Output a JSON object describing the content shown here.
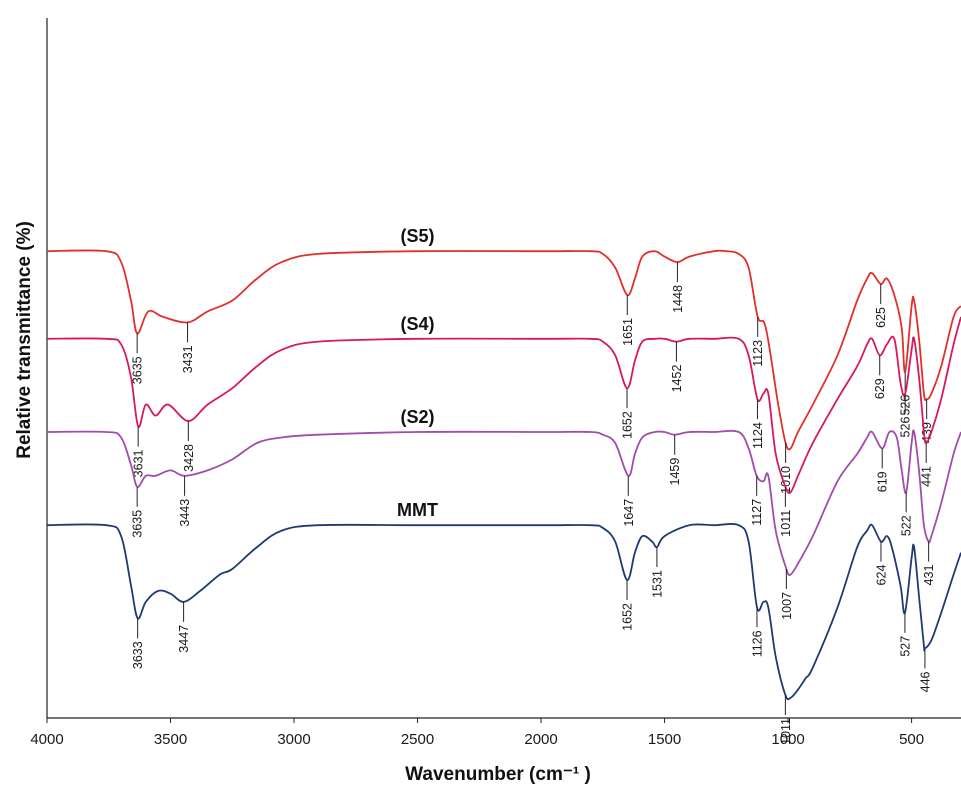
{
  "chart_data": {
    "type": "line",
    "title": "",
    "xlabel": "Wavenumber (cm⁻¹ )",
    "ylabel": "Relative transmittance (%)",
    "xlim": [
      4000,
      300
    ],
    "x_reversed": true,
    "x_ticks": [
      {
        "value": 4000,
        "label": "4000"
      },
      {
        "value": 3500,
        "label": "3500"
      },
      {
        "value": 3000,
        "label": "3000"
      },
      {
        "value": 2500,
        "label": "2500"
      },
      {
        "value": 2000,
        "label": "2000"
      },
      {
        "value": 1500,
        "label": "1500"
      },
      {
        "value": 1000,
        "label": "1000"
      },
      {
        "value": 500,
        "label": "500"
      }
    ],
    "y_relative": true,
    "ylim": [
      0,
      100
    ],
    "grid": false,
    "legend": "none (series labelled on curves)",
    "series": [
      {
        "name": "(S5)",
        "color": "#e0302b",
        "points": [
          [
            4000,
            83
          ],
          [
            3760,
            83
          ],
          [
            3700,
            81
          ],
          [
            3660,
            74
          ],
          [
            3635,
            68
          ],
          [
            3590,
            72
          ],
          [
            3530,
            71
          ],
          [
            3431,
            70
          ],
          [
            3350,
            72
          ],
          [
            3250,
            74
          ],
          [
            3150,
            78
          ],
          [
            3050,
            81
          ],
          [
            2900,
            82.5
          ],
          [
            2500,
            83
          ],
          [
            2000,
            83
          ],
          [
            1800,
            83
          ],
          [
            1750,
            82.5
          ],
          [
            1700,
            80
          ],
          [
            1651,
            75
          ],
          [
            1620,
            78
          ],
          [
            1590,
            82
          ],
          [
            1540,
            83
          ],
          [
            1500,
            82
          ],
          [
            1448,
            81
          ],
          [
            1400,
            82
          ],
          [
            1300,
            83
          ],
          [
            1250,
            83
          ],
          [
            1200,
            82.5
          ],
          [
            1160,
            80
          ],
          [
            1123,
            71
          ],
          [
            1090,
            69
          ],
          [
            1040,
            55
          ],
          [
            1010,
            48
          ],
          [
            990,
            47
          ],
          [
            960,
            50
          ],
          [
            900,
            55
          ],
          [
            800,
            64
          ],
          [
            720,
            74
          ],
          [
            680,
            78
          ],
          [
            660,
            79
          ],
          [
            625,
            77
          ],
          [
            600,
            78
          ],
          [
            570,
            75
          ],
          [
            540,
            69
          ],
          [
            526,
            61
          ],
          [
            500,
            73
          ],
          [
            490,
            74
          ],
          [
            470,
            67
          ],
          [
            450,
            57
          ],
          [
            439,
            56
          ],
          [
            420,
            57
          ],
          [
            380,
            62
          ],
          [
            330,
            71
          ],
          [
            300,
            73
          ]
        ],
        "peaks": [
          3635,
          3431,
          1651,
          1448,
          1123,
          1010,
          625,
          526,
          439
        ]
      },
      {
        "name": "(S4)",
        "color": "#d8185c",
        "points": [
          [
            4000,
            67
          ],
          [
            3760,
            67
          ],
          [
            3700,
            66
          ],
          [
            3660,
            60
          ],
          [
            3631,
            51
          ],
          [
            3600,
            55
          ],
          [
            3560,
            53
          ],
          [
            3510,
            55
          ],
          [
            3428,
            52
          ],
          [
            3350,
            55
          ],
          [
            3250,
            58
          ],
          [
            3150,
            62
          ],
          [
            3050,
            65
          ],
          [
            2900,
            66.5
          ],
          [
            2500,
            67
          ],
          [
            2000,
            67
          ],
          [
            1800,
            67
          ],
          [
            1750,
            66.5
          ],
          [
            1700,
            64
          ],
          [
            1652,
            58
          ],
          [
            1620,
            63
          ],
          [
            1590,
            66.5
          ],
          [
            1540,
            67
          ],
          [
            1500,
            67
          ],
          [
            1452,
            66.5
          ],
          [
            1400,
            67
          ],
          [
            1300,
            67
          ],
          [
            1200,
            67
          ],
          [
            1160,
            64
          ],
          [
            1124,
            56
          ],
          [
            1100,
            57
          ],
          [
            1080,
            57
          ],
          [
            1050,
            46
          ],
          [
            1011,
            40
          ],
          [
            990,
            39
          ],
          [
            960,
            42
          ],
          [
            900,
            48
          ],
          [
            800,
            56
          ],
          [
            720,
            62
          ],
          [
            680,
            66
          ],
          [
            660,
            67
          ],
          [
            629,
            64
          ],
          [
            600,
            66
          ],
          [
            570,
            67
          ],
          [
            545,
            59
          ],
          [
            526,
            57
          ],
          [
            500,
            65
          ],
          [
            490,
            67
          ],
          [
            470,
            60
          ],
          [
            450,
            50
          ],
          [
            441,
            48
          ],
          [
            420,
            50
          ],
          [
            380,
            56
          ],
          [
            330,
            66
          ],
          [
            300,
            71
          ]
        ],
        "peaks": [
          3631,
          3428,
          1652,
          1452,
          1124,
          1011,
          629,
          526,
          441
        ]
      },
      {
        "name": "(S2)",
        "color": "#a24cab",
        "points": [
          [
            4000,
            50
          ],
          [
            3760,
            50
          ],
          [
            3700,
            49
          ],
          [
            3660,
            44
          ],
          [
            3635,
            40
          ],
          [
            3600,
            42
          ],
          [
            3560,
            42
          ],
          [
            3500,
            43
          ],
          [
            3443,
            42
          ],
          [
            3350,
            43
          ],
          [
            3250,
            45
          ],
          [
            3150,
            48
          ],
          [
            3050,
            49
          ],
          [
            2900,
            49.5
          ],
          [
            2500,
            50
          ],
          [
            2000,
            50
          ],
          [
            1800,
            50
          ],
          [
            1750,
            49.5
          ],
          [
            1700,
            48
          ],
          [
            1647,
            42
          ],
          [
            1620,
            46
          ],
          [
            1590,
            49
          ],
          [
            1540,
            50
          ],
          [
            1500,
            50
          ],
          [
            1459,
            49.5
          ],
          [
            1400,
            50
          ],
          [
            1300,
            50
          ],
          [
            1200,
            50
          ],
          [
            1160,
            47
          ],
          [
            1127,
            42
          ],
          [
            1100,
            41
          ],
          [
            1080,
            42
          ],
          [
            1050,
            32
          ],
          [
            1007,
            25
          ],
          [
            990,
            24
          ],
          [
            960,
            26
          ],
          [
            900,
            31
          ],
          [
            800,
            41
          ],
          [
            720,
            46
          ],
          [
            680,
            49
          ],
          [
            660,
            50
          ],
          [
            619,
            47
          ],
          [
            590,
            50
          ],
          [
            560,
            49
          ],
          [
            540,
            43
          ],
          [
            522,
            39
          ],
          [
            500,
            48
          ],
          [
            490,
            50
          ],
          [
            470,
            43
          ],
          [
            450,
            33
          ],
          [
            431,
            30
          ],
          [
            420,
            31
          ],
          [
            380,
            37
          ],
          [
            330,
            46
          ],
          [
            300,
            50
          ]
        ],
        "peaks": [
          3635,
          3443,
          1647,
          1459,
          1127,
          1007,
          619,
          522,
          431
        ]
      },
      {
        "name": "MMT",
        "color": "#1f3a73",
        "points": [
          [
            4000,
            33
          ],
          [
            3760,
            33
          ],
          [
            3700,
            31
          ],
          [
            3660,
            22
          ],
          [
            3633,
            16
          ],
          [
            3600,
            19
          ],
          [
            3550,
            21
          ],
          [
            3500,
            20.5
          ],
          [
            3447,
            19
          ],
          [
            3380,
            21
          ],
          [
            3300,
            24
          ],
          [
            3250,
            25
          ],
          [
            3150,
            29
          ],
          [
            3050,
            32
          ],
          [
            2900,
            33
          ],
          [
            2500,
            33
          ],
          [
            2000,
            33
          ],
          [
            1800,
            33
          ],
          [
            1750,
            32.5
          ],
          [
            1700,
            30
          ],
          [
            1652,
            23
          ],
          [
            1620,
            28
          ],
          [
            1590,
            31
          ],
          [
            1550,
            30
          ],
          [
            1531,
            29
          ],
          [
            1500,
            31
          ],
          [
            1400,
            33
          ],
          [
            1300,
            33
          ],
          [
            1200,
            33
          ],
          [
            1160,
            30
          ],
          [
            1126,
            18
          ],
          [
            1100,
            19
          ],
          [
            1080,
            18
          ],
          [
            1050,
            9
          ],
          [
            1011,
            2
          ],
          [
            990,
            1.5
          ],
          [
            960,
            3
          ],
          [
            930,
            5
          ],
          [
            900,
            7
          ],
          [
            800,
            18
          ],
          [
            720,
            29
          ],
          [
            680,
            32
          ],
          [
            660,
            33
          ],
          [
            624,
            30
          ],
          [
            600,
            31
          ],
          [
            580,
            29
          ],
          [
            545,
            22
          ],
          [
            527,
            17
          ],
          [
            500,
            27
          ],
          [
            490,
            29
          ],
          [
            470,
            20
          ],
          [
            450,
            11
          ],
          [
            446,
            10.5
          ],
          [
            420,
            12
          ],
          [
            380,
            17
          ],
          [
            330,
            24
          ],
          [
            300,
            28
          ]
        ],
        "peaks": [
          3633,
          3447,
          1652,
          1531,
          1126,
          1011,
          624,
          527,
          446
        ]
      }
    ]
  }
}
